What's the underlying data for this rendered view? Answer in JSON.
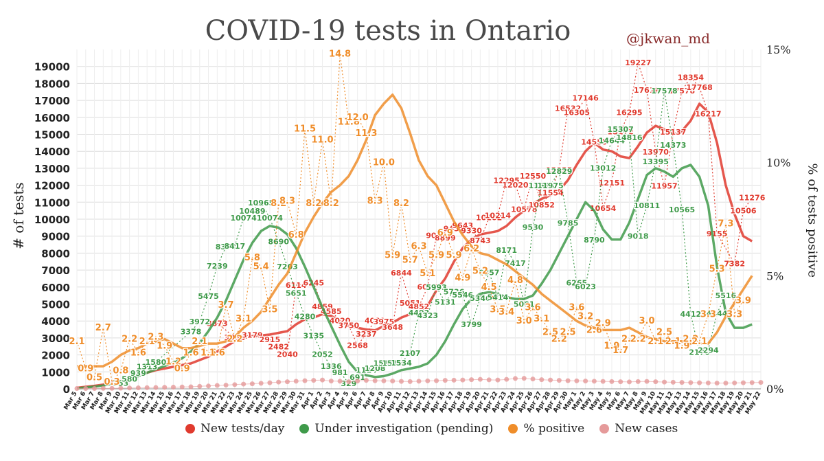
{
  "chart_data": {
    "type": "line",
    "title": "COVID-19 tests in Ontario",
    "credit": "@jkwan_md",
    "ylabel_left": "# of tests",
    "ylabel_right": "% of tests positive",
    "ylim_left": [
      0,
      20000
    ],
    "ylim_right": [
      0,
      15
    ],
    "yticks_left": [
      "0",
      "1000",
      "2000",
      "3000",
      "4000",
      "5000",
      "6000",
      "7000",
      "8000",
      "9000",
      "10000",
      "11000",
      "12000",
      "13000",
      "14000",
      "15000",
      "16000",
      "17000",
      "18000",
      "19000"
    ],
    "yticks_right": [
      "0%",
      "5%",
      "10%",
      "15%"
    ],
    "grid": true,
    "legend_position": "bottom",
    "x": [
      "Mar 5",
      "Mar 6",
      "Mar 7",
      "Mar 8",
      "Mar 9",
      "Mar 10",
      "Mar 11",
      "Mar 12",
      "Mar 13",
      "Mar 14",
      "Mar 15",
      "Mar 16",
      "Mar 17",
      "Mar 18",
      "Mar 19",
      "Mar 20",
      "Mar 21",
      "Mar 22",
      "Mar 23",
      "Mar 24",
      "Mar 25",
      "Mar 26",
      "Mar 27",
      "Mar 28",
      "Mar 29",
      "Mar 30",
      "Mar 31",
      "Apr 1",
      "Apr 2",
      "Apr 3",
      "Apr 4",
      "Apr 5",
      "Apr 6",
      "Apr 7",
      "Apr 8",
      "Apr 9",
      "Apr 10",
      "Apr 11",
      "Apr 12",
      "Apr 13",
      "Apr 14",
      "Apr 15",
      "Apr 16",
      "Apr 17",
      "Apr 18",
      "Apr 19",
      "Apr 20",
      "Apr 21",
      "Apr 22",
      "Apr 23",
      "Apr 24",
      "Apr 25",
      "Apr 26",
      "Apr 27",
      "Apr 28",
      "Apr 29",
      "Apr 30",
      "May 1",
      "May 2",
      "May 3",
      "May 4",
      "May 5",
      "May 6",
      "May 7",
      "May 8",
      "May 9",
      "May 10",
      "May 11",
      "May 12",
      "May 13",
      "May 14",
      "May 15",
      "May 16",
      "May 17",
      "May 18",
      "May 19",
      "May 20",
      "May 21",
      "May 22"
    ],
    "series": [
      {
        "name": "New tests/day",
        "color": "#e03a2e",
        "axis": "left",
        "values": [
          60,
          120,
          180,
          250,
          350,
          480,
          650,
          800,
          950,
          1100,
          1200,
          1300,
          1400,
          1500,
          1700,
          1900,
          2200,
          2500,
          2800,
          3000,
          3100,
          3150,
          3200,
          3300,
          3400,
          3800,
          4100,
          4200,
          4400,
          4300,
          4000,
          3700,
          3600,
          3500,
          3450,
          3700,
          3900,
          4200,
          4400,
          4500,
          4900,
          5800,
          6500,
          7500,
          8300,
          8800,
          9100,
          9200,
          9300,
          9600,
          10100,
          10500,
          10900,
          11200,
          11400,
          11700,
          12300,
          13200,
          14000,
          14500,
          14100,
          14000,
          13700,
          13600,
          14300,
          15100,
          15500,
          15300,
          15000,
          15200,
          15800,
          16800,
          16300,
          14500,
          12000,
          10300,
          9000,
          8700,
          null
        ],
        "labels": [
          null,
          null,
          null,
          null,
          null,
          null,
          null,
          null,
          null,
          null,
          null,
          null,
          null,
          null,
          null,
          null,
          "3873",
          null,
          "3036",
          null,
          "3179",
          null,
          "2915",
          "2482",
          "2040",
          "6114",
          null,
          "6245",
          "4859",
          "4585",
          "4020",
          "3750",
          "2568",
          "3237",
          "4032",
          "3975",
          "3648",
          "6844",
          "5051",
          "4852",
          "6010",
          "9050",
          "8899",
          "9451",
          "9643",
          "9330",
          "8743",
          "10102",
          "10214",
          "12295",
          "12020",
          "10578",
          "12550",
          "10852",
          "11554",
          "12923",
          "16532",
          "16305",
          "17146",
          "14555",
          "10654",
          "12151",
          "15172",
          "16295",
          "19227",
          "17618",
          "13970",
          "11957",
          "15137",
          "17578",
          "18354",
          "17768",
          "16217",
          "9155",
          null,
          "7382",
          "10506",
          "11276",
          null
        ]
      },
      {
        "name": "Under investigation (pending)",
        "color": "#3f9a4a",
        "axis": "left",
        "values": [
          30,
          80,
          130,
          200,
          300,
          450,
          580,
          750,
          950,
          1150,
          1350,
          1550,
          1800,
          2200,
          2700,
          3400,
          4200,
          5200,
          6400,
          7600,
          8600,
          9300,
          9600,
          9500,
          9100,
          8300,
          7200,
          6000,
          4800,
          3700,
          2600,
          1600,
          1000,
          800,
          700,
          750,
          900,
          1100,
          1200,
          1300,
          1500,
          2000,
          2800,
          3800,
          4700,
          5300,
          5600,
          5700,
          5600,
          5400,
          5300,
          5300,
          5500,
          6200,
          7000,
          8000,
          9000,
          10000,
          11000,
          10500,
          9400,
          8800,
          8800,
          9800,
          11200,
          12600,
          13000,
          12800,
          12500,
          13000,
          13200,
          12500,
          10800,
          7200,
          4500,
          3600,
          3600,
          3800,
          null
        ],
        "labels": [
          null,
          null,
          null,
          null,
          null,
          "353",
          "580",
          "939",
          "1313",
          "1580",
          null,
          null,
          null,
          "3378",
          "3972",
          "5475",
          "7239",
          "8378",
          "8417",
          "10074",
          "10489",
          "10965",
          "10074",
          "8690",
          "7203",
          "5651",
          "4280",
          "3135",
          "2052",
          "1336",
          "981",
          "329",
          "691",
          "1114",
          "1208",
          "1519",
          "1516",
          "1534",
          "2107",
          "4493",
          "4323",
          "5993",
          "5131",
          "5736",
          "5546",
          "3799",
          "5346",
          "6857",
          "5414",
          "8171",
          "7417",
          "5001",
          "9530",
          "11974",
          "11975",
          "12829",
          "9785",
          "6265",
          "6023",
          "8790",
          "13012",
          "14644",
          "15307",
          "14816",
          "9018",
          "10811",
          "13395",
          "17578",
          "14373",
          "10565",
          "4412",
          "2170",
          "2294",
          "4444",
          "5516",
          null,
          null,
          null,
          null
        ]
      },
      {
        "name": "% positive",
        "color": "#ef8d2a",
        "axis": "right",
        "values": [
          1.0,
          1.0,
          1.0,
          1.0,
          1.2,
          1.5,
          1.7,
          1.8,
          2.0,
          2.1,
          2.2,
          2.0,
          1.8,
          1.8,
          1.9,
          2.0,
          2.0,
          2.1,
          2.3,
          2.7,
          3.0,
          3.4,
          4.0,
          4.6,
          5.1,
          6.0,
          6.9,
          7.6,
          8.2,
          8.7,
          9.0,
          9.4,
          10.1,
          11.0,
          12.1,
          12.6,
          13.0,
          12.4,
          11.3,
          10.1,
          9.4,
          9.0,
          8.2,
          7.4,
          6.8,
          6.3,
          6.0,
          5.9,
          5.7,
          5.5,
          5.2,
          4.9,
          4.6,
          4.2,
          3.9,
          3.6,
          3.3,
          3.0,
          2.8,
          2.7,
          2.6,
          2.6,
          2.6,
          2.7,
          2.5,
          2.3,
          2.2,
          2.1,
          2.1,
          2.1,
          2.0,
          2.0,
          2.0,
          2.5,
          3.2,
          3.8,
          4.4,
          5.0,
          null
        ],
        "labels": [
          "2.1",
          "0.9",
          "0.5",
          "2.7",
          "0.3",
          "0.8",
          "2.2",
          "1.6",
          "2.1",
          "2.3",
          "1.9",
          "1.2",
          "0.9",
          "1.6",
          "2.1",
          "1.6",
          "1.6",
          "3.7",
          "2.2",
          "3.1",
          "5.8",
          "5.4",
          "3.5",
          "8.2",
          "8.3",
          "6.8",
          "11.5",
          "8.2",
          "11.0",
          "8.2",
          "14.8",
          "11.8",
          "12.0",
          "11.3",
          "8.3",
          "10.0",
          "5.9",
          "8.2",
          "5.7",
          "6.3",
          "5.1",
          "5.9",
          "6.9",
          "5.9",
          "4.9",
          "6.2",
          "5.2",
          "4.5",
          "3.5",
          "3.4",
          "4.8",
          "3.0",
          "3.6",
          "3.1",
          "2.5",
          "2.2",
          "2.5",
          "3.6",
          "3.2",
          "2.6",
          "2.9",
          "1.9",
          "1.7",
          "2.2",
          "2.2",
          "3.0",
          "2.1",
          "2.5",
          "2.1",
          "1.9",
          "2.2",
          "2.1",
          "3.3",
          "5.3",
          "7.3",
          "3.3",
          "3.9",
          null,
          null
        ],
        "labels_y": [
          2.1,
          0.9,
          0.5,
          2.7,
          0.3,
          0.8,
          2.2,
          1.6,
          2.1,
          2.3,
          1.9,
          1.2,
          0.9,
          1.6,
          2.1,
          1.6,
          1.6,
          3.7,
          2.2,
          3.1,
          5.8,
          5.4,
          3.5,
          8.2,
          8.3,
          6.8,
          11.5,
          8.2,
          11.0,
          8.2,
          14.8,
          11.8,
          12.0,
          11.3,
          8.3,
          10.0,
          5.9,
          8.2,
          5.7,
          6.3,
          5.1,
          5.9,
          6.9,
          5.9,
          4.9,
          6.2,
          5.2,
          4.5,
          3.5,
          3.4,
          4.8,
          3.0,
          3.6,
          3.1,
          2.5,
          2.2,
          2.5,
          3.6,
          3.2,
          2.6,
          2.9,
          1.9,
          1.7,
          2.2,
          2.2,
          3.0,
          2.1,
          2.5,
          2.1,
          1.9,
          2.2,
          2.1,
          3.3,
          5.3,
          7.3,
          3.3,
          3.9,
          null,
          null
        ]
      },
      {
        "name": "New cases",
        "color": "#e59a9a",
        "axis": "left",
        "values": [
          20,
          20,
          20,
          30,
          30,
          40,
          50,
          60,
          70,
          80,
          90,
          100,
          110,
          120,
          150,
          170,
          200,
          220,
          250,
          280,
          300,
          330,
          360,
          400,
          420,
          450,
          480,
          500,
          520,
          460,
          450,
          420,
          460,
          500,
          480,
          470,
          460,
          440,
          430,
          450,
          470,
          480,
          500,
          510,
          520,
          540,
          560,
          530,
          520,
          560,
          610,
          620,
          580,
          540,
          520,
          500,
          480,
          470,
          460,
          450,
          440,
          430,
          420,
          410,
          430,
          440,
          420,
          400,
          390,
          380,
          370,
          360,
          350,
          340,
          340,
          350,
          360,
          370,
          380
        ]
      }
    ]
  },
  "legend": {
    "items": [
      {
        "label": "New tests/day",
        "color": "#e03a2e"
      },
      {
        "label": "Under investigation (pending)",
        "color": "#3f9a4a"
      },
      {
        "label": "% positive",
        "color": "#ef8d2a"
      },
      {
        "label": "New cases",
        "color": "#e59a9a"
      }
    ]
  }
}
